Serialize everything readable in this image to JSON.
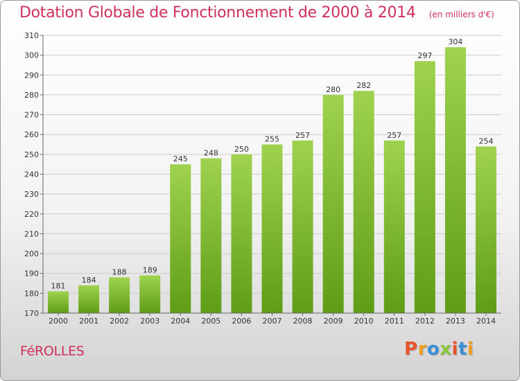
{
  "header": {
    "title": "Dotation Globale de Fonctionnement de 2000 à 2014",
    "subtitle": "(en milliers d'€)"
  },
  "footer": {
    "commune": "FéROLLES",
    "logo_letters": [
      "P",
      "r",
      "o",
      "x",
      "i",
      "t",
      "i"
    ],
    "logo_colors": [
      "#e8552c",
      "#f0a01e",
      "#3a8fd6",
      "#8cc63e",
      "#e8552c",
      "#3a8fd6",
      "#f0a01e"
    ]
  },
  "colors": {
    "bar_top": "#9fd24f",
    "bar_bottom": "#5f9d17",
    "title": "#d0305a",
    "grid": "#cccccc"
  },
  "chart_data": {
    "type": "bar",
    "title": "Dotation Globale de Fonctionnement de 2000 à 2014",
    "subtitle": "(en milliers d'€)",
    "categories": [
      "2000",
      "2001",
      "2002",
      "2003",
      "2004",
      "2005",
      "2006",
      "2007",
      "2008",
      "2009",
      "2010",
      "2011",
      "2012",
      "2013",
      "2014"
    ],
    "values": [
      181,
      184,
      188,
      189,
      245,
      248,
      250,
      255,
      257,
      280,
      282,
      257,
      297,
      304,
      254
    ],
    "ylim": [
      170,
      310
    ],
    "yticks": [
      170,
      180,
      190,
      200,
      210,
      220,
      230,
      240,
      250,
      260,
      270,
      280,
      290,
      300,
      310
    ],
    "grid": true,
    "legend": "none"
  }
}
